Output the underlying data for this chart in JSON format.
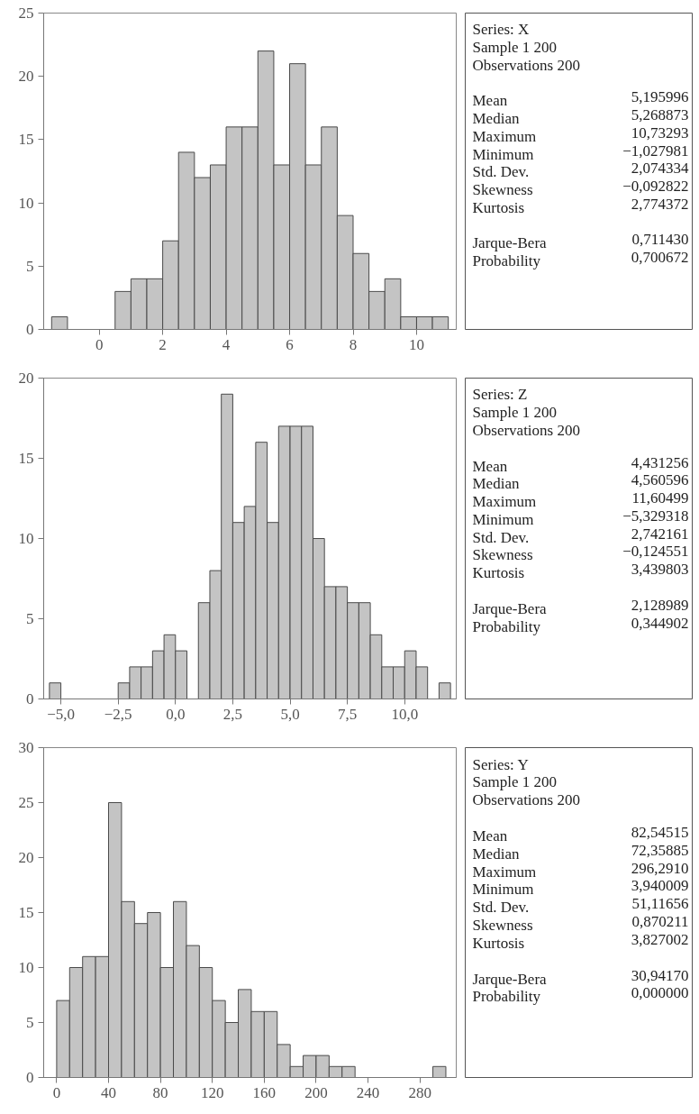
{
  "chart_data": [
    {
      "type": "histogram",
      "color": "#c4c4c4",
      "xlim": [
        -1.75,
        11.25
      ],
      "ylim": [
        0,
        25
      ],
      "xticks": [
        0,
        2,
        4,
        6,
        8,
        10
      ],
      "yticks": [
        0,
        5,
        10,
        15,
        20,
        25
      ],
      "bins": [
        -1.5,
        -1.0,
        -0.5,
        0.0,
        0.5,
        1.0,
        1.5,
        2.0,
        2.5,
        3.0,
        3.5,
        4.0,
        4.5,
        5.0,
        5.5,
        6.0,
        6.5,
        7.0,
        7.5,
        8.0,
        8.5,
        9.0,
        9.5,
        10.0,
        10.5,
        11.0
      ],
      "values": [
        1,
        0,
        0,
        0,
        3,
        4,
        4,
        7,
        14,
        12,
        13,
        16,
        16,
        22,
        13,
        21,
        13,
        16,
        9,
        6,
        3,
        4,
        1,
        1,
        1
      ]
    },
    {
      "type": "other",
      "title": "Series: X",
      "annotations": [
        "Sample 1 200",
        "Observations 200"
      ],
      "categories": [
        "Mean",
        "Median",
        "Maximum",
        "Minimum",
        "Std. Dev.",
        "Skewness",
        "Kurtosis",
        "Jarque-Bera",
        "Probability"
      ],
      "value_labels": [
        "5,195996",
        "5,268873",
        "10,73293",
        "−1,027981",
        "2,074334",
        "−0,092822",
        "2,774372",
        "0,711430",
        "0,700672"
      ]
    },
    {
      "type": "histogram",
      "color": "#c4c4c4",
      "xlim": [
        -5.75,
        12.25
      ],
      "ylim": [
        0,
        20
      ],
      "xticks": [
        {
          "value": -5,
          "label": "−5,0"
        },
        {
          "value": -2.5,
          "label": "−2,5"
        },
        {
          "value": 0,
          "label": "0,0"
        },
        {
          "value": 2.5,
          "label": "2,5"
        },
        {
          "value": 5,
          "label": "5,0"
        },
        {
          "value": 7.5,
          "label": "7,5"
        },
        {
          "value": 10,
          "label": "10,0"
        }
      ],
      "yticks": [
        0,
        5,
        10,
        15,
        20
      ],
      "bins": [
        -5.5,
        -5.0,
        -4.5,
        -4.0,
        -3.5,
        -3.0,
        -2.5,
        -2.0,
        -1.5,
        -1.0,
        -0.5,
        0.0,
        0.5,
        1.0,
        1.5,
        2.0,
        2.5,
        3.0,
        3.5,
        4.0,
        4.5,
        5.0,
        5.5,
        6.0,
        6.5,
        7.0,
        7.5,
        8.0,
        8.5,
        9.0,
        9.5,
        10.0,
        10.5,
        11.0,
        11.5,
        12.0
      ],
      "values": [
        1,
        0,
        0,
        0,
        0,
        0,
        1,
        2,
        2,
        3,
        4,
        3,
        0,
        6,
        8,
        19,
        11,
        12,
        16,
        11,
        17,
        17,
        17,
        10,
        7,
        7,
        6,
        6,
        4,
        2,
        2,
        3,
        2,
        0,
        1
      ]
    },
    {
      "type": "other",
      "title": "Series: Z",
      "annotations": [
        "Sample 1 200",
        "Observations 200"
      ],
      "categories": [
        "Mean",
        "Median",
        "Maximum",
        "Minimum",
        "Std. Dev.",
        "Skewness",
        "Kurtosis",
        "Jarque-Bera",
        "Probability"
      ],
      "value_labels": [
        "4,431256",
        "4,560596",
        "11,60499",
        "−5,329318",
        "2,742161",
        "−0,124551",
        "3,439803",
        "2,128989",
        "0,344902"
      ]
    },
    {
      "type": "histogram",
      "color": "#c4c4c4",
      "xlim": [
        -10,
        308
      ],
      "ylim": [
        0,
        30
      ],
      "xticks": [
        0,
        40,
        80,
        120,
        160,
        200,
        240,
        280
      ],
      "yticks": [
        0,
        5,
        10,
        15,
        20,
        25,
        30
      ],
      "bins": [
        0,
        10,
        20,
        30,
        40,
        50,
        60,
        70,
        80,
        90,
        100,
        110,
        120,
        130,
        140,
        150,
        160,
        170,
        180,
        190,
        200,
        210,
        220,
        230,
        240,
        250,
        260,
        270,
        280,
        290,
        300
      ],
      "values": [
        7,
        10,
        11,
        11,
        25,
        16,
        14,
        15,
        10,
        16,
        12,
        10,
        7,
        5,
        8,
        6,
        6,
        3,
        1,
        2,
        2,
        1,
        1,
        0,
        0,
        0,
        0,
        0,
        0,
        1
      ]
    },
    {
      "type": "other",
      "title": "Series: Y",
      "annotations": [
        "Sample 1 200",
        "Observations 200"
      ],
      "categories": [
        "Mean",
        "Median",
        "Maximum",
        "Minimum",
        "Std. Dev.",
        "Skewness",
        "Kurtosis",
        "Jarque-Bera",
        "Probability"
      ],
      "value_labels": [
        "82,54515",
        "72,35885",
        "296,2910",
        "3,940009",
        "51,11656",
        "0,870211",
        "3,827002",
        "30,94170",
        "0,000000"
      ]
    }
  ]
}
